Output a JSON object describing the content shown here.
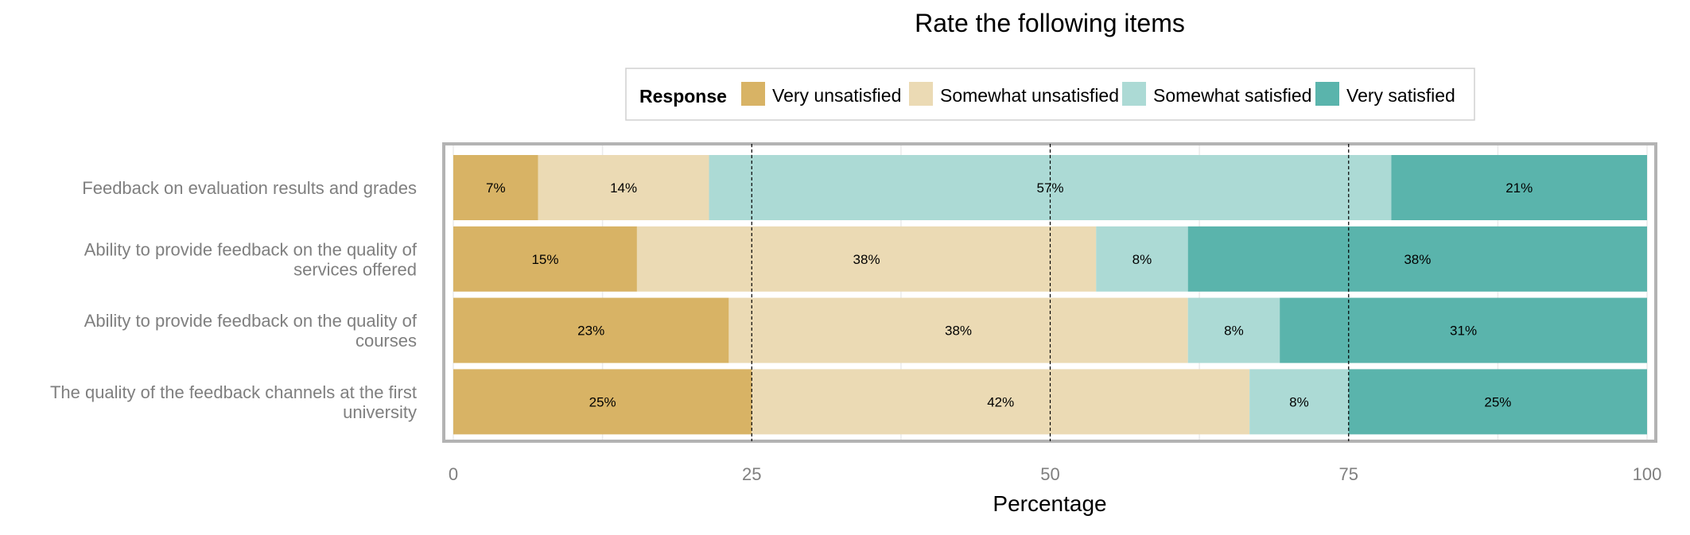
{
  "chart_data": {
    "type": "bar",
    "orientation": "horizontal",
    "stacked": true,
    "title": "Rate the following items",
    "xlabel": "Percentage",
    "ylabel": "",
    "xlim": [
      0,
      100
    ],
    "x_ticks": [
      0,
      25,
      50,
      75,
      100
    ],
    "grid": true,
    "reference_lines": [
      25,
      50,
      75
    ],
    "legend": {
      "title": "Response",
      "position": "top"
    },
    "categories": [
      [
        "Feedback on evaluation results and grades"
      ],
      [
        "Ability to provide feedback on the quality of",
        "services offered"
      ],
      [
        "Ability to provide feedback on the quality of",
        "courses"
      ],
      [
        "The quality of the feedback channels at the first",
        "university"
      ]
    ],
    "series": [
      {
        "name": "Very unsatisfied",
        "color": "#d8b365",
        "values": [
          7.1,
          15.4,
          23.1,
          25.0
        ],
        "labels": [
          "7%",
          "15%",
          "23%",
          "25%"
        ]
      },
      {
        "name": "Somewhat unsatisfied",
        "color": "#ebdab4",
        "values": [
          14.3,
          38.5,
          38.5,
          41.7
        ],
        "labels": [
          "14%",
          "38%",
          "38%",
          "42%"
        ]
      },
      {
        "name": "Somewhat satisfied",
        "color": "#acdad5",
        "values": [
          57.1,
          7.7,
          7.7,
          8.3
        ],
        "labels": [
          "57%",
          "8%",
          "8%",
          "8%"
        ]
      },
      {
        "name": "Very satisfied",
        "color": "#5ab4ac",
        "values": [
          21.4,
          38.5,
          30.8,
          25.0
        ],
        "labels": [
          "21%",
          "38%",
          "31%",
          "25%"
        ]
      }
    ]
  }
}
